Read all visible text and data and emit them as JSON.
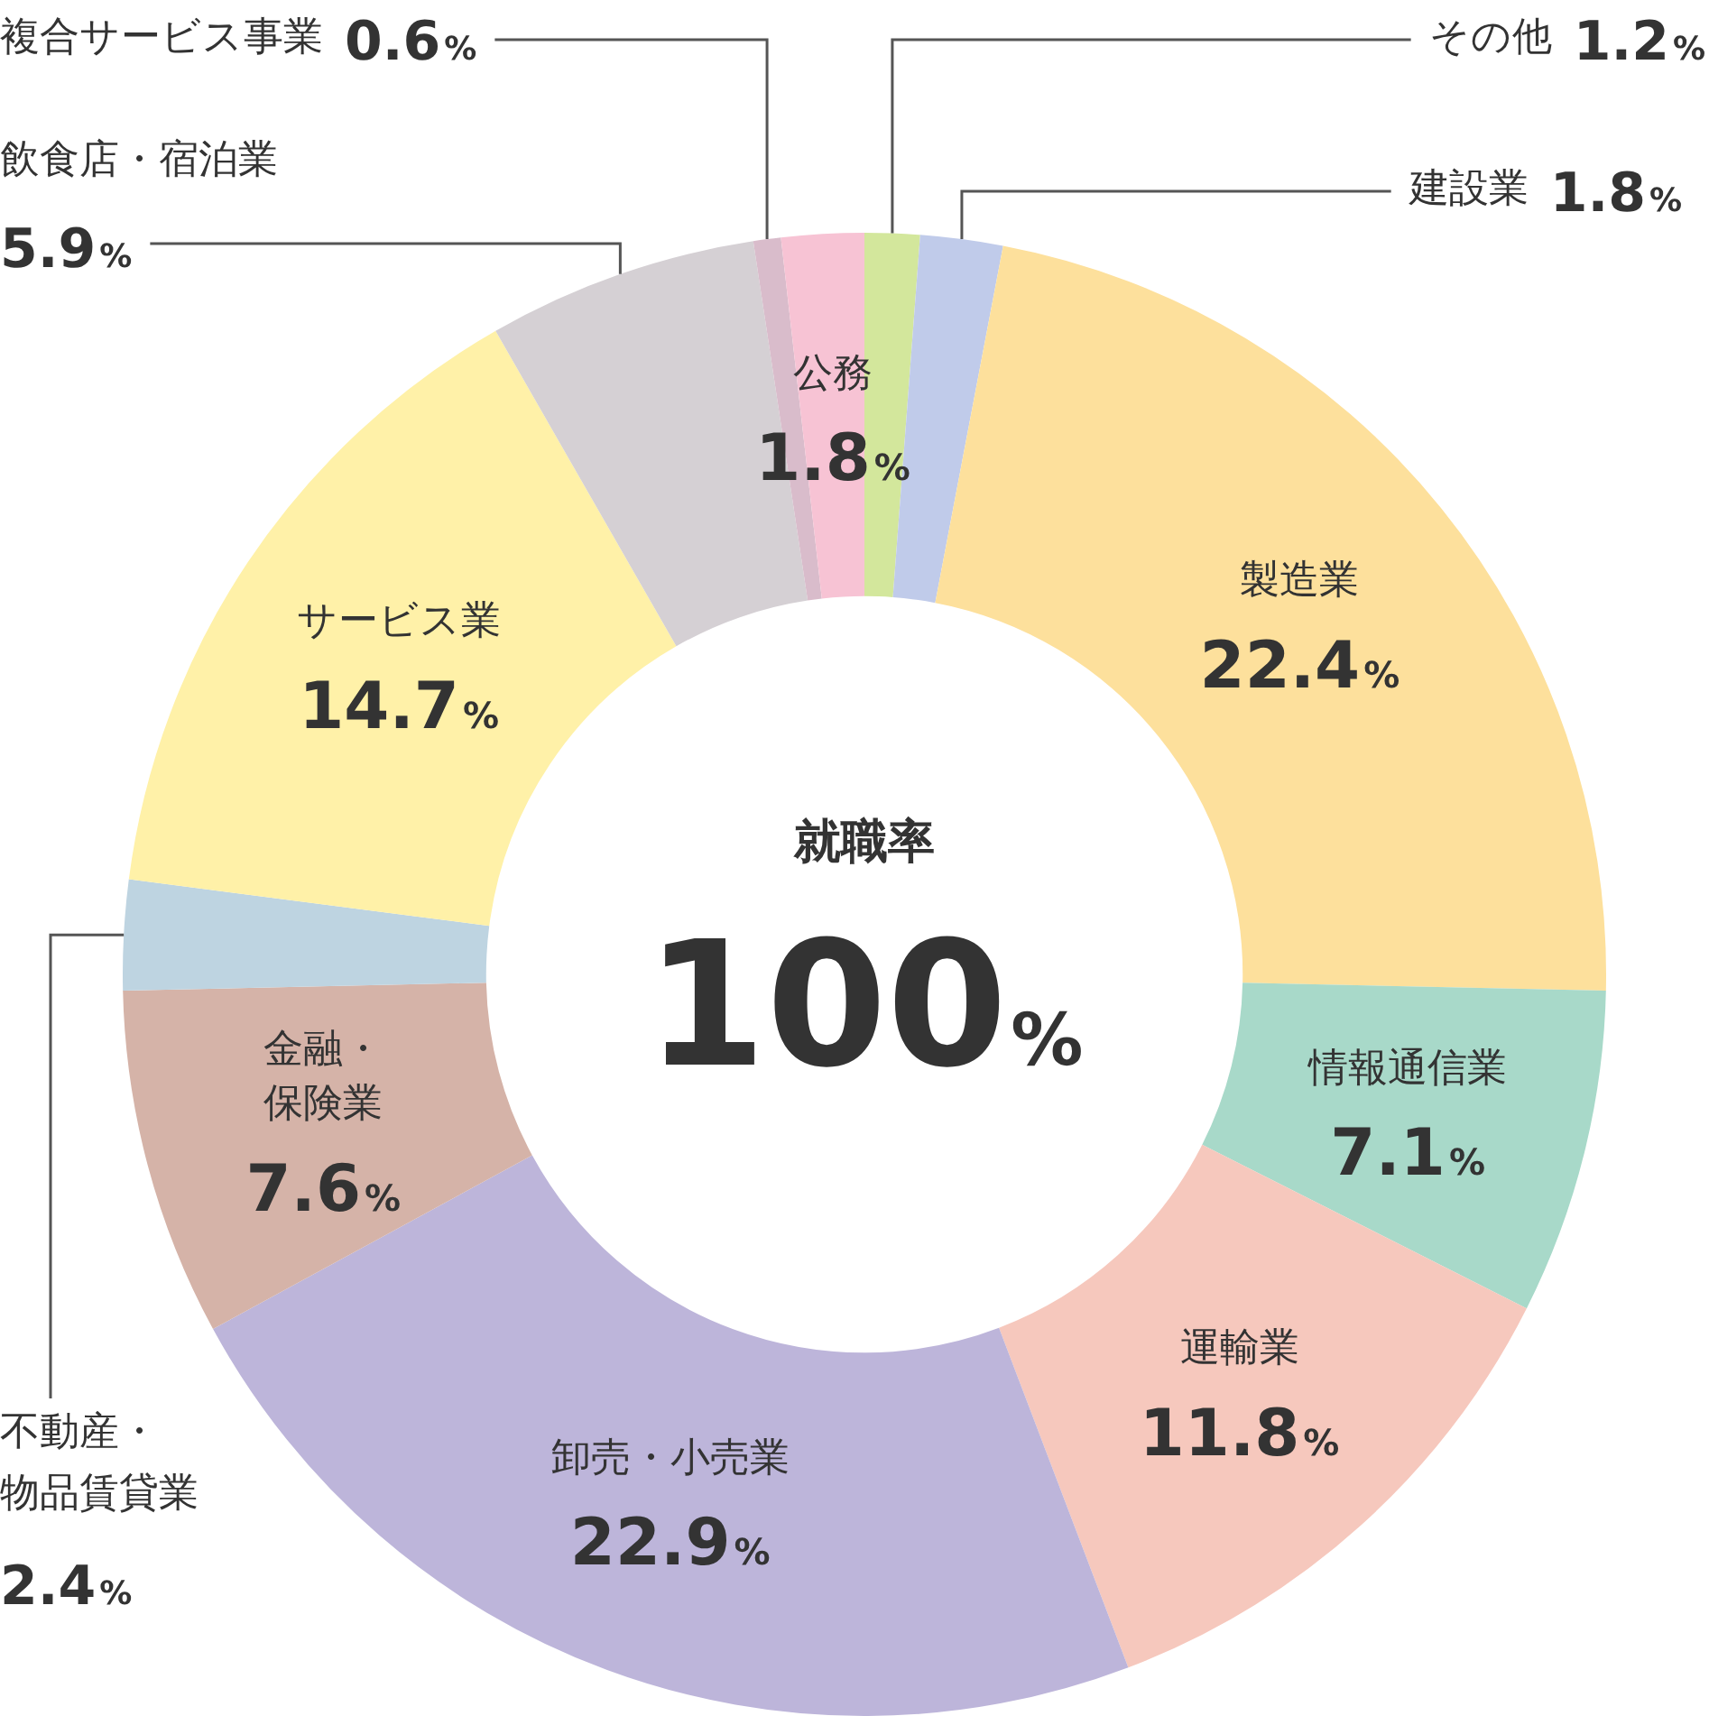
{
  "chart_data": {
    "type": "donut",
    "categories": [
      "その他",
      "建設業",
      "製造業",
      "情報通信業",
      "運輸業",
      "卸売・小売業",
      "金融・保険業",
      "不動産・物品賃貸業",
      "サービス業",
      "飲食店・宿泊業",
      "複合サービス事業",
      "公務"
    ],
    "values": [
      1.2,
      1.8,
      22.4,
      7.1,
      11.8,
      22.9,
      7.6,
      2.4,
      14.7,
      5.9,
      0.6,
      1.8
    ],
    "value_labels": [
      "1.2%",
      "1.8%",
      "22.4%",
      "7.1%",
      "11.8%",
      "22.9%",
      "7.6%",
      "2.4%",
      "14.7%",
      "5.9%",
      "0.6%",
      "1.8%"
    ],
    "colors": [
      "#d3e79c",
      "#c0cbea",
      "#fde09c",
      "#a8d9c9",
      "#f6c8bd",
      "#bdb5da",
      "#d5b3a8",
      "#bed4e1",
      "#fff1a8",
      "#d5d0d4",
      "#d9bccb",
      "#f7c3d4"
    ],
    "legend": false,
    "annotations": [
      "就職率",
      "100%"
    ]
  }
}
